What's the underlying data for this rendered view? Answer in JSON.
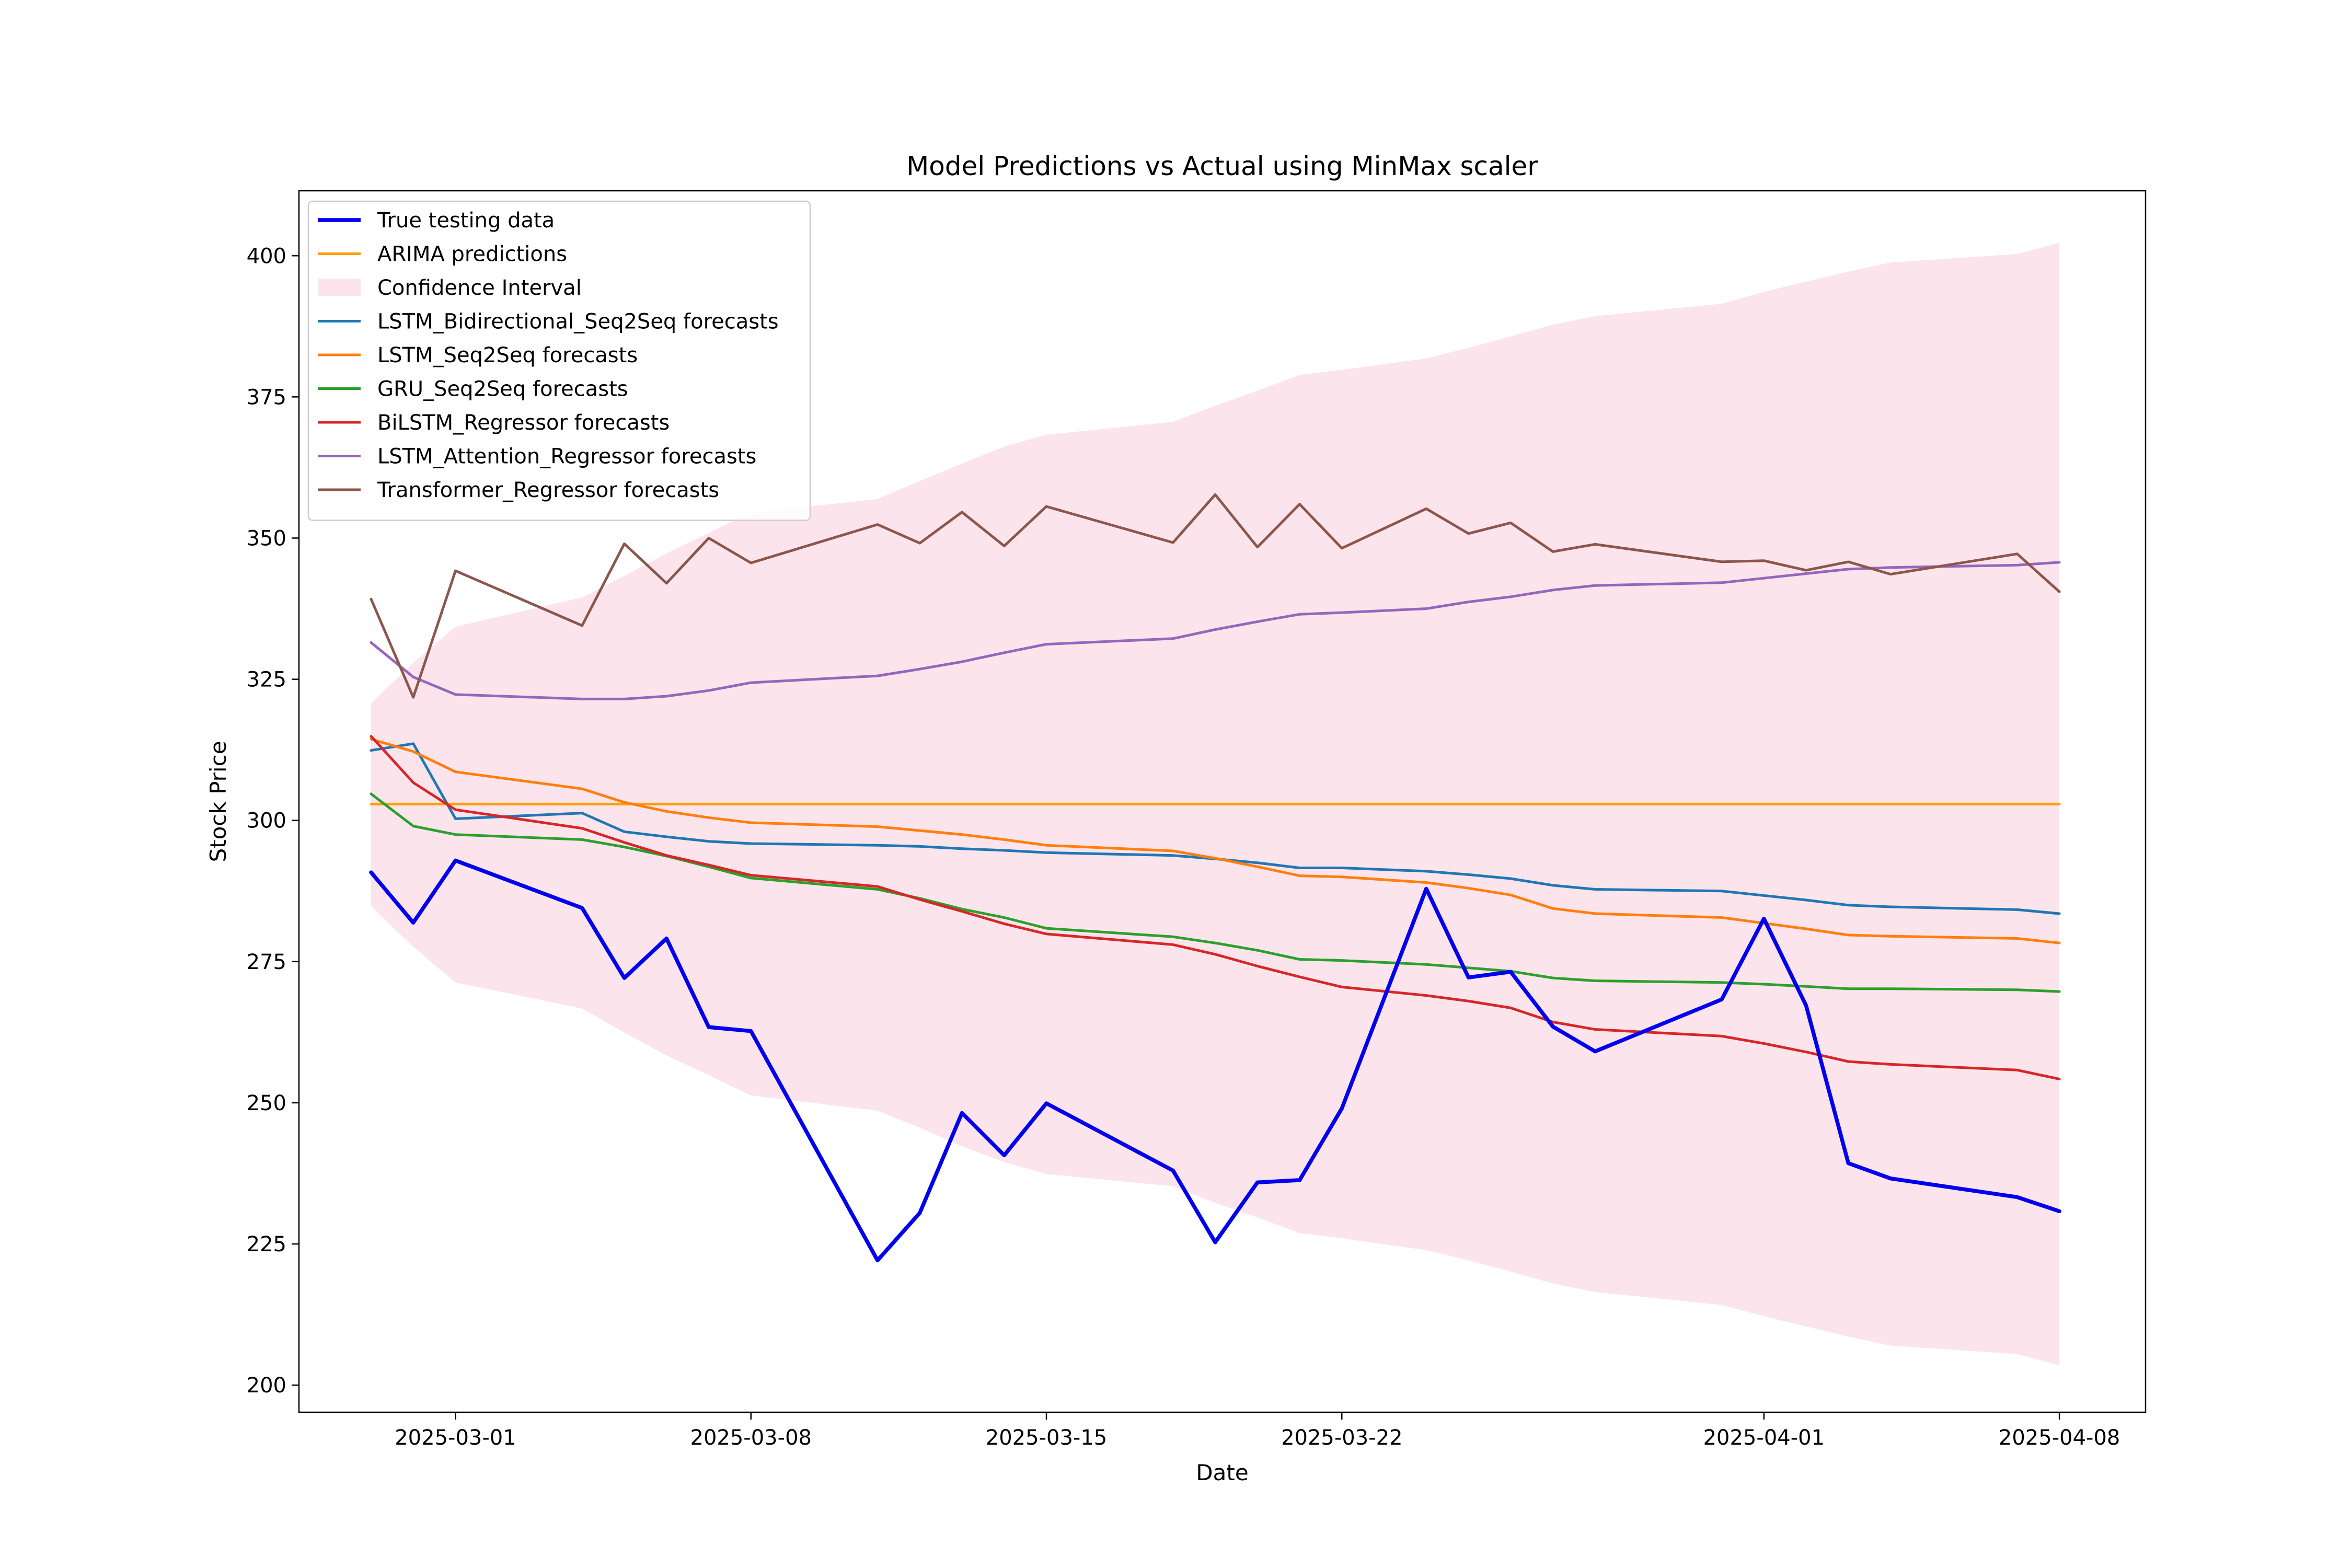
{
  "chart_data": {
    "type": "line",
    "title": "Model Predictions vs Actual using MinMax scaler",
    "xlabel": "Date",
    "ylabel": "Stock Price",
    "xlim": [
      "2025-02-25T07:00",
      "2025-04-10T01:00"
    ],
    "ylim": [
      195.2,
      411.5
    ],
    "x_ticks": [
      "2025-03-01",
      "2025-03-08",
      "2025-03-15",
      "2025-03-22",
      "2025-04-01",
      "2025-04-08"
    ],
    "y_ticks": [
      200,
      225,
      250,
      275,
      300,
      325,
      350,
      375,
      400
    ],
    "grid": false,
    "legend_position": "top-left",
    "x": [
      "2025-02-27",
      "2025-02-28",
      "2025-03-01",
      "2025-03-04",
      "2025-03-05",
      "2025-03-06",
      "2025-03-07",
      "2025-03-08",
      "2025-03-11",
      "2025-03-12",
      "2025-03-13",
      "2025-03-14",
      "2025-03-15",
      "2025-03-18",
      "2025-03-19",
      "2025-03-20",
      "2025-03-21",
      "2025-03-22",
      "2025-03-24",
      "2025-03-25",
      "2025-03-26",
      "2025-03-27",
      "2025-03-28",
      "2025-03-31",
      "2025-04-01",
      "2025-04-02",
      "2025-04-03",
      "2025-04-04",
      "2025-04-07",
      "2025-04-08"
    ],
    "series": [
      {
        "name": "True testing data",
        "color": "#0000ee",
        "style": "bold",
        "values": [
          290.8,
          281.9,
          292.9,
          284.5,
          272.1,
          279.1,
          263.4,
          262.7,
          222.1,
          230.5,
          248.2,
          240.7,
          249.9,
          238.0,
          225.3,
          235.9,
          236.3,
          249.0,
          287.9,
          272.2,
          273.2,
          263.5,
          259.1,
          268.3,
          282.6,
          267.2,
          239.3,
          236.6,
          233.3,
          230.8
        ]
      },
      {
        "name": "ARIMA predictions",
        "color": "#ff9f00",
        "values": [
          302.9,
          302.9,
          302.9,
          302.9,
          302.9,
          302.9,
          302.9,
          302.9,
          302.9,
          302.9,
          302.9,
          302.9,
          302.9,
          302.9,
          302.9,
          302.9,
          302.9,
          302.9,
          302.9,
          302.9,
          302.9,
          302.9,
          302.9,
          302.9,
          302.9,
          302.9,
          302.9,
          302.9,
          302.9,
          302.9
        ]
      },
      {
        "name": "LSTM_Bidirectional_Seq2Seq forecasts",
        "color": "#1f77b4",
        "values": [
          312.4,
          313.6,
          300.3,
          301.3,
          298.0,
          297.1,
          296.3,
          295.9,
          295.6,
          295.4,
          295.0,
          294.7,
          294.3,
          293.8,
          293.2,
          292.5,
          291.6,
          291.6,
          291.0,
          290.4,
          289.7,
          288.5,
          287.8,
          287.5,
          286.7,
          285.9,
          285.0,
          284.7,
          284.2,
          283.5
        ]
      },
      {
        "name": "LSTM_Seq2Seq forecasts",
        "color": "#ff7f0e",
        "values": [
          314.4,
          312.2,
          308.6,
          305.6,
          303.2,
          301.6,
          300.5,
          299.6,
          298.9,
          298.2,
          297.5,
          296.6,
          295.6,
          294.6,
          293.3,
          291.8,
          290.2,
          290.0,
          289.0,
          288.0,
          286.8,
          284.4,
          283.5,
          282.8,
          281.8,
          280.8,
          279.7,
          279.5,
          279.1,
          278.3
        ]
      },
      {
        "name": "GRU_Seq2Seq forecasts",
        "color": "#2ca02c",
        "values": [
          304.7,
          299.0,
          297.5,
          296.6,
          295.3,
          293.7,
          291.8,
          289.8,
          287.8,
          286.2,
          284.3,
          282.8,
          280.9,
          279.4,
          278.3,
          277.0,
          275.4,
          275.2,
          274.5,
          273.9,
          273.3,
          272.1,
          271.6,
          271.3,
          271.0,
          270.6,
          270.2,
          270.2,
          270.0,
          269.7
        ]
      },
      {
        "name": "BiLSTM_Regressor forecasts",
        "color": "#d62728",
        "values": [
          314.9,
          306.7,
          301.9,
          298.6,
          296.1,
          293.8,
          292.1,
          290.3,
          288.3,
          286.0,
          283.9,
          281.7,
          279.9,
          278.0,
          276.3,
          274.2,
          272.3,
          270.5,
          269.0,
          268.0,
          266.8,
          264.3,
          263.0,
          261.8,
          260.5,
          259.0,
          257.3,
          256.8,
          255.8,
          254.2
        ]
      },
      {
        "name": "LSTM_Attention_Regressor forecasts",
        "color": "#9467bd",
        "values": [
          331.5,
          325.4,
          322.3,
          321.5,
          321.5,
          322.0,
          323.0,
          324.4,
          325.6,
          326.8,
          328.1,
          329.7,
          331.2,
          332.2,
          333.8,
          335.2,
          336.5,
          336.8,
          337.5,
          338.7,
          339.6,
          340.8,
          341.6,
          342.1,
          342.9,
          343.7,
          344.5,
          344.8,
          345.2,
          345.7
        ]
      },
      {
        "name": "Transformer_Regressor forecasts",
        "color": "#8c564b",
        "values": [
          339.2,
          321.8,
          344.2,
          334.5,
          349.0,
          342.0,
          350.0,
          345.6,
          352.4,
          349.1,
          354.6,
          348.6,
          355.6,
          349.2,
          357.7,
          348.4,
          356.0,
          348.2,
          355.2,
          350.8,
          352.7,
          347.6,
          348.9,
          345.8,
          346.0,
          344.3,
          345.8,
          343.6,
          347.2,
          340.5
        ]
      }
    ],
    "confidence_interval": {
      "name": "Confidence Interval",
      "color": "#fce4ec",
      "upper": [
        320.8,
        327.9,
        334.3,
        339.5,
        343.3,
        347.3,
        350.9,
        354.5,
        356.9,
        360.1,
        363.2,
        366.2,
        368.3,
        370.6,
        373.4,
        376.1,
        378.9,
        379.8,
        381.8,
        383.7,
        385.7,
        387.8,
        389.3,
        391.5,
        393.6,
        395.4,
        397.2,
        398.8,
        400.3,
        402.3
      ],
      "lower": [
        284.8,
        277.6,
        271.3,
        266.7,
        262.4,
        258.4,
        254.9,
        251.3,
        248.6,
        245.6,
        242.3,
        239.5,
        237.4,
        235.2,
        232.3,
        229.7,
        226.9,
        226.0,
        223.9,
        222.1,
        220.1,
        218.0,
        216.5,
        214.2,
        212.2,
        210.4,
        208.6,
        207.0,
        205.5,
        203.5
      ]
    }
  }
}
